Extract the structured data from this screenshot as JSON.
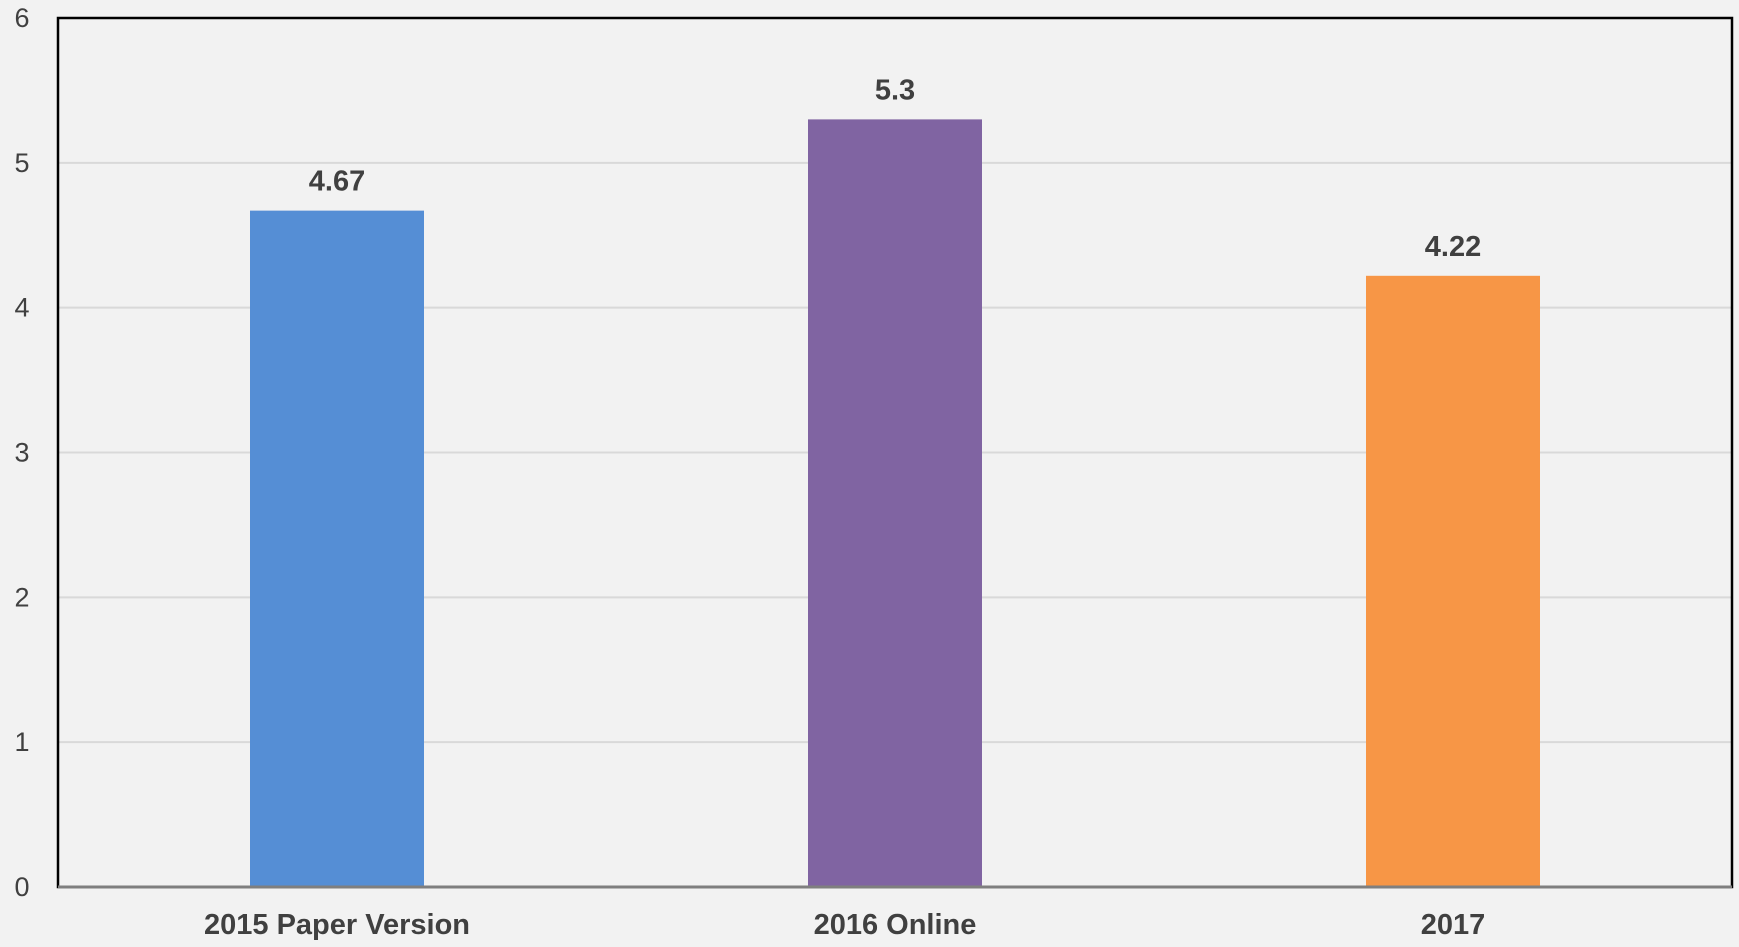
{
  "chart_data": {
    "type": "bar",
    "categories": [
      "2015 Paper Version",
      "2016 Online",
      "2017"
    ],
    "values": [
      4.67,
      5.3,
      4.22
    ],
    "value_labels": [
      "4.67",
      "5.3",
      "4.22"
    ],
    "colors": [
      "#558ed5",
      "#8064a2",
      "#f79646"
    ],
    "title": "",
    "xlabel": "",
    "ylabel": "",
    "ylim": [
      0,
      6
    ],
    "yticks": [
      0,
      1,
      2,
      3,
      4,
      5,
      6
    ],
    "ytick_labels": [
      "0",
      "1",
      "2",
      "3",
      "4",
      "5",
      "6"
    ],
    "grid": true,
    "legend": "none"
  },
  "style": {
    "background": "#f2f2f2",
    "gridline_color": "#d9d9d9",
    "axis_color": "#000000",
    "text_color": "#404040"
  }
}
